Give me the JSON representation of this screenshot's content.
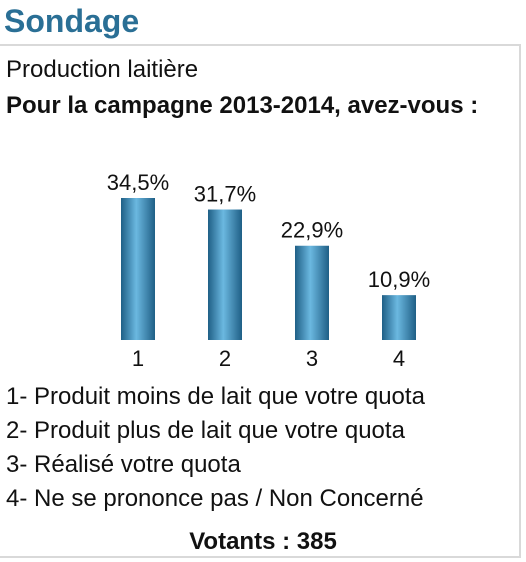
{
  "widget": {
    "title": "Sondage"
  },
  "poll": {
    "subtitle": "Production laitière",
    "question": "Pour la campagne 2013-2014, avez-vous :",
    "legend": [
      "1- Produit moins de lait que votre quota",
      "2- Produit plus de lait que votre quota",
      "3- Réalisé votre quota",
      "4- Ne se prononce pas / Non Concerné"
    ],
    "voters_label": "Votants : 385"
  },
  "colors": {
    "title": "#2a6f95",
    "bar_dark": "#1f5f86",
    "bar_light": "#6bb8e0"
  },
  "chart_data": {
    "type": "bar",
    "categories": [
      "1",
      "2",
      "3",
      "4"
    ],
    "values": [
      34.5,
      31.7,
      22.9,
      10.9
    ],
    "value_labels": [
      "34,5%",
      "31,7%",
      "22,9%",
      "10,9%"
    ],
    "ylim": [
      0,
      34.5
    ]
  }
}
